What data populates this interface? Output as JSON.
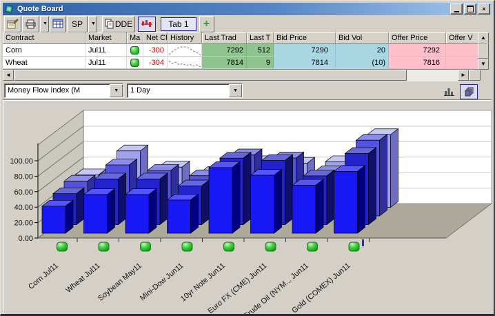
{
  "window": {
    "title": "Quote Board",
    "controls": {
      "minimize": "_",
      "maximize": "□",
      "close": "×"
    }
  },
  "toolbar": {
    "properties_button": "properties",
    "print_button": "print",
    "grid_button": "grid-layout",
    "sp_label": "SP",
    "dde_label": "DDE",
    "chart_toggle": "price-chart",
    "tab_label": "Tab 1",
    "add_tab_label": "+"
  },
  "table": {
    "columns": [
      "Contract",
      "Market",
      "Ma",
      "Net Ch",
      "History",
      "Last Trad",
      "Last T",
      "Bid Price",
      "Bid Vol",
      "Offer Price",
      "Offer V"
    ],
    "rows": [
      {
        "contract": "Corn",
        "market": "Jul11",
        "state": "green",
        "net_change": "-300",
        "last_trade": "7292",
        "last_size": "512",
        "bid_price": "7290",
        "bid_vol": "20",
        "offer_price": "7292",
        "offer_vol": "",
        "history_points": [
          [
            1,
            13
          ],
          [
            7,
            8
          ],
          [
            13,
            4
          ],
          [
            19,
            2
          ],
          [
            25,
            2
          ],
          [
            31,
            4
          ],
          [
            37,
            8
          ],
          [
            43,
            11
          ],
          [
            47,
            14
          ]
        ]
      },
      {
        "contract": "Wheat",
        "market": "Jul11",
        "state": "green",
        "net_change": "-304",
        "last_trade": "7814",
        "last_size": "9",
        "bid_price": "7814",
        "bid_vol": "(10)",
        "offer_price": "7816",
        "offer_vol": "",
        "history_points": [
          [
            1,
            4
          ],
          [
            6,
            8
          ],
          [
            11,
            6
          ],
          [
            16,
            10
          ],
          [
            21,
            8
          ],
          [
            26,
            11
          ],
          [
            31,
            9
          ],
          [
            36,
            12
          ],
          [
            41,
            10
          ],
          [
            47,
            13
          ]
        ]
      }
    ]
  },
  "controls_row": {
    "indicator_dropdown": "Money Flow Index (M",
    "period_dropdown": "1 Day"
  },
  "ui_colors": {
    "titlebar_gradient_start": "#2E62A8",
    "titlebar_gradient_end": "#A6C8EE",
    "selected_border": "#26268C",
    "chrome": "#D4D0C8",
    "negative_text": "#CC0000",
    "last_trade_bg": "#8FC38F",
    "bid_bg": "#A9D6E3",
    "offer_bg": "#FFC0CB",
    "state_green": "#2FBF2F"
  },
  "chart_data": {
    "type": "bar",
    "variant": "3d-depth-rows",
    "title": "",
    "categories": [
      "Corn Jul11",
      "Wheat Jul11",
      "Soybean May11",
      "Mini-Dow Jun11",
      "10yr Note Jun11",
      "Euro FX (CME) Jun11",
      "Crude Oil (NYM... Jun11",
      "Gold (COMEX) Jun11"
    ],
    "series": [
      {
        "name": "row-1-front",
        "face": "#1818F5",
        "top": "#5555FF",
        "side": "#000082",
        "values": [
          35,
          50,
          50,
          43,
          85,
          75,
          62,
          80
        ]
      },
      {
        "name": "row-2",
        "face": "#2323CE",
        "top": "#6666DD",
        "side": "#101068",
        "values": [
          40,
          59,
          59,
          50,
          86,
          83,
          63,
          92
        ]
      },
      {
        "name": "row-3",
        "face": "#5353DF",
        "top": "#8C8CEF",
        "side": "#2E2E9C",
        "values": [
          45,
          66,
          59,
          52,
          79,
          75,
          57,
          98
        ]
      },
      {
        "name": "row-4-back",
        "face": "#A0A0F0",
        "top": "#C6C6FA",
        "side": "#6E6EC4",
        "values": [
          42,
          73,
          52,
          45,
          59,
          57,
          59,
          94
        ]
      }
    ],
    "y_ticks": [
      "0.00",
      "20.00",
      "40.00",
      "60.00",
      "80.00",
      "100.00"
    ],
    "ylim": [
      0,
      120
    ],
    "legend": "none",
    "grid": true,
    "category_marker_color": "#33CC33",
    "walls": {
      "floor": "#ADA99B",
      "left_wall": "#CBC8BD",
      "back_wall": "#FFFFFF",
      "gridline": "#C9C9C9"
    }
  }
}
